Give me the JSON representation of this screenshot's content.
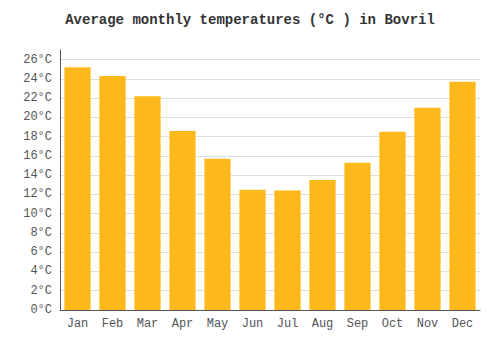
{
  "chart_data": {
    "type": "bar",
    "title": "Average monthly temperatures (°C ) in Bovril",
    "categories": [
      "Jan",
      "Feb",
      "Mar",
      "Apr",
      "May",
      "Jun",
      "Jul",
      "Aug",
      "Sep",
      "Oct",
      "Nov",
      "Dec"
    ],
    "values": [
      25.2,
      24.3,
      22.2,
      18.6,
      15.7,
      12.5,
      12.4,
      13.5,
      15.3,
      18.5,
      21.0,
      23.7
    ],
    "color": "#FDB91B",
    "ylim": [
      0,
      27
    ],
    "yticks": [
      {
        "value": 0,
        "label": "0°C"
      },
      {
        "value": 2,
        "label": "2°C"
      },
      {
        "value": 4,
        "label": "4°C"
      },
      {
        "value": 6,
        "label": "6°C"
      },
      {
        "value": 8,
        "label": "8°C"
      },
      {
        "value": 10,
        "label": "10°C"
      },
      {
        "value": 12,
        "label": "12°C"
      },
      {
        "value": 14,
        "label": "14°C"
      },
      {
        "value": 16,
        "label": "16°C"
      },
      {
        "value": 18,
        "label": "18°C"
      },
      {
        "value": 20,
        "label": "20°C"
      },
      {
        "value": 22,
        "label": "22°C"
      },
      {
        "value": 24,
        "label": "24°C"
      },
      {
        "value": 26,
        "label": "26°C"
      }
    ],
    "grid": true
  }
}
